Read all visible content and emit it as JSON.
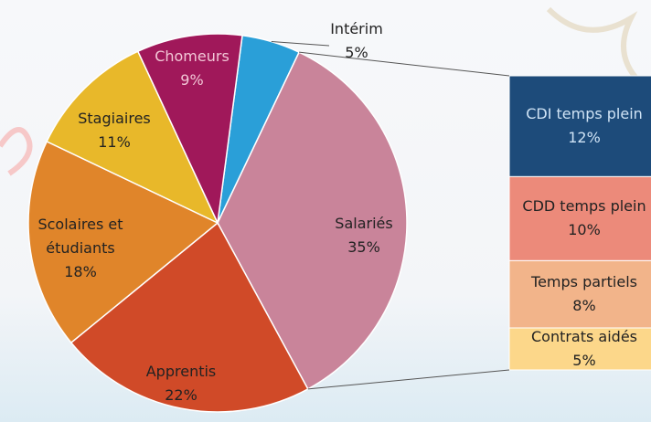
{
  "chart_data": {
    "type": "pie-of-bar",
    "categories": [
      "Intérim",
      "Salariés",
      "Apprentis",
      "Scolaires et étudiants",
      "Stagiaires",
      "Chomeurs"
    ],
    "values": [
      5,
      35,
      22,
      18,
      11,
      9
    ],
    "value_labels": [
      "5%",
      "35%",
      "22%",
      "18%",
      "11%",
      "9%"
    ],
    "colors": [
      "#2a9fd8",
      "#c9849a",
      "#d04a28",
      "#e0852a",
      "#e8b82a",
      "#a0185a"
    ],
    "breakdown": {
      "categories": [
        "CDI temps plein",
        "CDD temps plein",
        "Temps partiels",
        "Contrats aidés"
      ],
      "values": [
        12,
        10,
        8,
        5
      ],
      "value_labels": [
        "12%",
        "10%",
        "8%",
        "5%"
      ],
      "colors": [
        "#1d4b7a",
        "#ec8a7a",
        "#f2b48a",
        "#fcd78a"
      ]
    }
  }
}
